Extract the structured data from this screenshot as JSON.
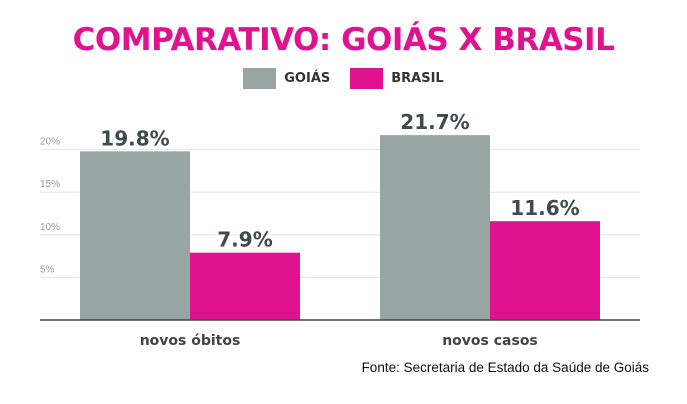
{
  "colors": {
    "title": "#e0128f",
    "goias": "#98a6a3",
    "brasil": "#e0128f",
    "text": "#444444"
  },
  "chart_data": {
    "type": "bar",
    "title": "COMPARATIVO: GOIÁS X BRASIL",
    "categories": [
      "novos óbitos",
      "novos casos"
    ],
    "series": [
      {
        "name": "GOIÁS",
        "values": [
          19.8,
          21.7
        ],
        "labels": [
          "19.8%",
          "21.7%"
        ]
      },
      {
        "name": "BRASIL",
        "values": [
          7.9,
          11.6
        ],
        "labels": [
          "7.9%",
          "11.6%"
        ]
      }
    ],
    "yticks": [
      5,
      10,
      15,
      20
    ],
    "ytick_labels": [
      "5%",
      "10%",
      "15%",
      "20%"
    ],
    "ylim": [
      0,
      25
    ],
    "grid": true,
    "legend_position": "top-center"
  },
  "source": "Fonte: Secretaria de Estado da Saúde de Goiás"
}
